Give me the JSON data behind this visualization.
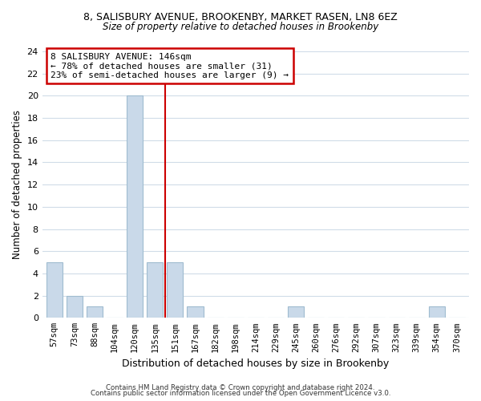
{
  "title_line1": "8, SALISBURY AVENUE, BROOKENBY, MARKET RASEN, LN8 6EZ",
  "title_line2": "Size of property relative to detached houses in Brookenby",
  "xlabel": "Distribution of detached houses by size in Brookenby",
  "ylabel": "Number of detached properties",
  "bar_labels": [
    "57sqm",
    "73sqm",
    "88sqm",
    "104sqm",
    "120sqm",
    "135sqm",
    "151sqm",
    "167sqm",
    "182sqm",
    "198sqm",
    "214sqm",
    "229sqm",
    "245sqm",
    "260sqm",
    "276sqm",
    "292sqm",
    "307sqm",
    "323sqm",
    "339sqm",
    "354sqm",
    "370sqm"
  ],
  "bar_values": [
    5,
    2,
    1,
    0,
    20,
    5,
    5,
    1,
    0,
    0,
    0,
    0,
    1,
    0,
    0,
    0,
    0,
    0,
    0,
    1,
    0
  ],
  "bar_color": "#c9d9e9",
  "bar_edge_color": "#a0bcd0",
  "vline_x": 5.5,
  "vline_color": "#cc0000",
  "annotation_title": "8 SALISBURY AVENUE: 146sqm",
  "annotation_line1": "← 78% of detached houses are smaller (31)",
  "annotation_line2": "23% of semi-detached houses are larger (9) →",
  "annotation_box_edge": "#cc0000",
  "ylim": [
    0,
    24
  ],
  "yticks": [
    0,
    2,
    4,
    6,
    8,
    10,
    12,
    14,
    16,
    18,
    20,
    22,
    24
  ],
  "footer_line1": "Contains HM Land Registry data © Crown copyright and database right 2024.",
  "footer_line2": "Contains public sector information licensed under the Open Government Licence v3.0.",
  "background_color": "#ffffff",
  "grid_color": "#d0dce8"
}
